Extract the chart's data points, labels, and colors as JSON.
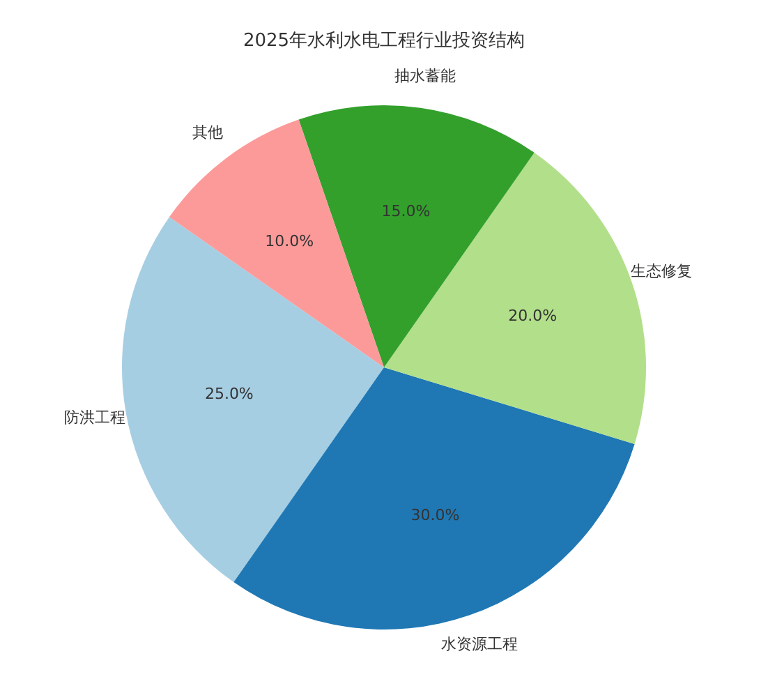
{
  "chart_data": {
    "type": "pie",
    "title": "2025年水利水电工程行业投资结构",
    "categories": [
      "防洪工程",
      "水资源工程",
      "生态修复",
      "抽水蓄能",
      "其他"
    ],
    "values": [
      25,
      30,
      20,
      15,
      10
    ],
    "colors": [
      "#a6cee3",
      "#1f78b4",
      "#b2df8a",
      "#33a02c",
      "#fb9a99"
    ],
    "value_labels": [
      "25.0%",
      "30.0%",
      "20.0%",
      "15.0%",
      "10.0%"
    ]
  }
}
